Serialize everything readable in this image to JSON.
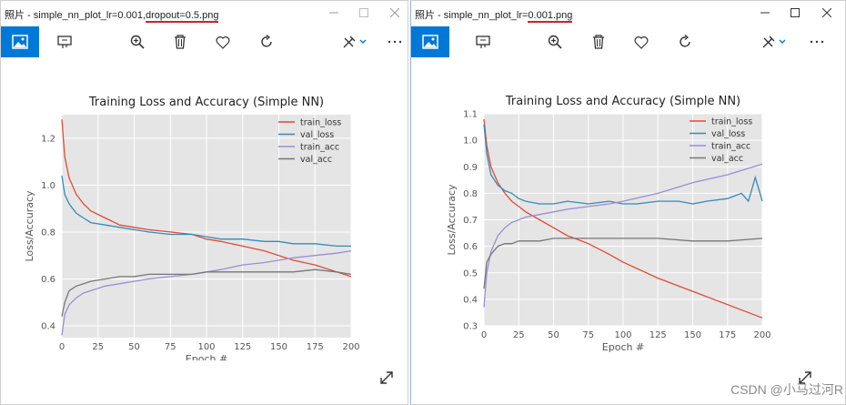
{
  "windows": [
    {
      "title_prefix": "照片 - simple_nn_plot_lr=0.001,",
      "title_underlined": "dropout=0.5.png",
      "title_suffix": ""
    },
    {
      "title_prefix": "照片 - simple_nn_plot_lr=",
      "title_underlined": "0.001.png",
      "title_suffix": ""
    }
  ],
  "toolbar_icons": [
    "image-view-icon",
    "slideshow-icon",
    "zoom-in-icon",
    "delete-icon",
    "favorite-icon",
    "rotate-icon",
    "edit-tools-icon",
    "more-icon"
  ],
  "watermark": "CSDN @小马过河R",
  "chart_data": [
    {
      "type": "line",
      "title": "Training Loss and Accuracy (Simple NN)",
      "xlabel": "Epoch #",
      "ylabel": "Loss/Accuracy",
      "xlim": [
        0,
        200
      ],
      "ylim": [
        0.35,
        1.3
      ],
      "xticks": [
        "0",
        "25",
        "50",
        "75",
        "100",
        "125",
        "150",
        "175",
        "200"
      ],
      "yticks": [
        "0.4",
        "0.6",
        "0.8",
        "1.0",
        "1.2"
      ],
      "legend": "top-right",
      "grid": true,
      "series": [
        {
          "name": "train_loss",
          "color": "#e24a33",
          "x": [
            0,
            2,
            5,
            10,
            15,
            20,
            30,
            40,
            50,
            60,
            75,
            90,
            100,
            110,
            125,
            140,
            150,
            160,
            175,
            190,
            200
          ],
          "y": [
            1.28,
            1.12,
            1.03,
            0.96,
            0.92,
            0.89,
            0.86,
            0.83,
            0.82,
            0.81,
            0.8,
            0.79,
            0.77,
            0.76,
            0.74,
            0.72,
            0.7,
            0.68,
            0.66,
            0.63,
            0.61
          ]
        },
        {
          "name": "val_loss",
          "color": "#348abd",
          "x": [
            0,
            2,
            5,
            10,
            15,
            20,
            30,
            40,
            50,
            60,
            75,
            90,
            100,
            110,
            125,
            140,
            150,
            160,
            175,
            190,
            200
          ],
          "y": [
            1.04,
            0.96,
            0.92,
            0.88,
            0.86,
            0.84,
            0.83,
            0.82,
            0.81,
            0.8,
            0.79,
            0.79,
            0.78,
            0.77,
            0.77,
            0.76,
            0.76,
            0.75,
            0.75,
            0.74,
            0.74
          ]
        },
        {
          "name": "train_acc",
          "color": "#988ed5",
          "x": [
            0,
            2,
            5,
            10,
            15,
            20,
            30,
            40,
            50,
            60,
            75,
            90,
            100,
            110,
            125,
            140,
            150,
            160,
            175,
            190,
            200
          ],
          "y": [
            0.36,
            0.45,
            0.49,
            0.52,
            0.54,
            0.55,
            0.57,
            0.58,
            0.59,
            0.6,
            0.61,
            0.62,
            0.63,
            0.64,
            0.66,
            0.67,
            0.68,
            0.69,
            0.7,
            0.71,
            0.72
          ]
        },
        {
          "name": "val_acc",
          "color": "#777777",
          "x": [
            0,
            2,
            5,
            10,
            15,
            20,
            30,
            40,
            50,
            60,
            75,
            90,
            100,
            110,
            125,
            140,
            150,
            160,
            175,
            190,
            200
          ],
          "y": [
            0.44,
            0.5,
            0.55,
            0.57,
            0.58,
            0.59,
            0.6,
            0.61,
            0.61,
            0.62,
            0.62,
            0.62,
            0.63,
            0.63,
            0.63,
            0.63,
            0.63,
            0.63,
            0.64,
            0.63,
            0.62
          ]
        }
      ]
    },
    {
      "type": "line",
      "title": "Training Loss and Accuracy (Simple NN)",
      "xlabel": "Epoch #",
      "ylabel": "Loss/Accuracy",
      "xlim": [
        0,
        200
      ],
      "ylim": [
        0.3,
        1.1
      ],
      "xticks": [
        "0",
        "25",
        "50",
        "75",
        "100",
        "125",
        "150",
        "175",
        "200"
      ],
      "yticks": [
        "0.3",
        "0.4",
        "0.5",
        "0.6",
        "0.7",
        "0.8",
        "0.9",
        "1.0",
        "1.1"
      ],
      "legend": "top-right",
      "grid": true,
      "series": [
        {
          "name": "train_loss",
          "color": "#e24a33",
          "x": [
            0,
            2,
            5,
            10,
            15,
            20,
            25,
            30,
            40,
            50,
            60,
            75,
            90,
            100,
            125,
            150,
            175,
            200
          ],
          "y": [
            1.08,
            0.98,
            0.9,
            0.84,
            0.8,
            0.77,
            0.75,
            0.73,
            0.7,
            0.67,
            0.64,
            0.61,
            0.57,
            0.54,
            0.48,
            0.43,
            0.38,
            0.33
          ]
        },
        {
          "name": "val_loss",
          "color": "#348abd",
          "x": [
            0,
            2,
            5,
            10,
            15,
            20,
            25,
            30,
            40,
            50,
            60,
            75,
            90,
            100,
            110,
            125,
            140,
            150,
            160,
            175,
            185,
            190,
            195,
            200
          ],
          "y": [
            1.06,
            0.95,
            0.87,
            0.83,
            0.81,
            0.8,
            0.78,
            0.77,
            0.76,
            0.76,
            0.77,
            0.76,
            0.77,
            0.76,
            0.76,
            0.77,
            0.77,
            0.76,
            0.77,
            0.78,
            0.8,
            0.77,
            0.86,
            0.77
          ]
        },
        {
          "name": "train_acc",
          "color": "#988ed5",
          "x": [
            0,
            2,
            5,
            10,
            15,
            20,
            25,
            30,
            40,
            50,
            60,
            75,
            90,
            100,
            125,
            150,
            175,
            200
          ],
          "y": [
            0.37,
            0.5,
            0.58,
            0.64,
            0.67,
            0.69,
            0.7,
            0.71,
            0.72,
            0.73,
            0.74,
            0.75,
            0.76,
            0.77,
            0.8,
            0.84,
            0.87,
            0.91
          ]
        },
        {
          "name": "val_acc",
          "color": "#777777",
          "x": [
            0,
            2,
            5,
            10,
            15,
            20,
            25,
            30,
            40,
            50,
            60,
            75,
            90,
            100,
            125,
            150,
            175,
            200
          ],
          "y": [
            0.44,
            0.54,
            0.57,
            0.6,
            0.61,
            0.61,
            0.62,
            0.62,
            0.62,
            0.63,
            0.63,
            0.63,
            0.63,
            0.63,
            0.63,
            0.62,
            0.62,
            0.63
          ]
        }
      ]
    }
  ]
}
